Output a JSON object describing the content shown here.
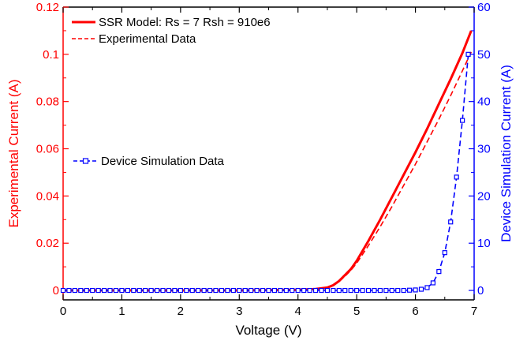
{
  "chart_data": {
    "type": "line",
    "xlabel": "Voltage (V)",
    "ylabel_left": "Experimental Current (A)",
    "ylabel_right": "Device Simulation Current (A)",
    "xlim": [
      0,
      7
    ],
    "ylim_left": [
      -0.004,
      0.12
    ],
    "ylim_right": [
      -2,
      60
    ],
    "x_ticks": [
      "0",
      "1",
      "2",
      "3",
      "4",
      "5",
      "6",
      "7"
    ],
    "y_ticks_left": [
      "0",
      "0.02",
      "0.04",
      "0.06",
      "0.08",
      "0.1",
      "0.12"
    ],
    "y_ticks_right": [
      "0",
      "10",
      "20",
      "30",
      "40",
      "50",
      "60"
    ],
    "grid": false,
    "colors": {
      "left_axis": "#ff0000",
      "right_axis": "#0000ff",
      "frame": "#000000"
    },
    "legend_top": [
      {
        "label": "SSR Model: Rs = 7 Rsh = 910e6",
        "style": "solid",
        "color": "#ff0000"
      },
      {
        "label": "Experimental Data",
        "style": "dashed",
        "color": "#ff0000"
      }
    ],
    "legend_left": [
      {
        "label": "Device Simulation Data",
        "style": "dashed-square",
        "color": "#0000ff"
      }
    ],
    "series": [
      {
        "name": "SSR Model: Rs = 7 Rsh = 910e6",
        "axis": "left",
        "style": "solid",
        "color": "#ff0000",
        "x": [
          0,
          1,
          2,
          3,
          4,
          4.3,
          4.5,
          4.6,
          4.7,
          4.8,
          4.9,
          5.0,
          5.2,
          5.4,
          5.6,
          5.8,
          6.0,
          6.2,
          6.4,
          6.6,
          6.8,
          6.95
        ],
        "y": [
          0,
          0,
          0,
          0,
          0.0002,
          0.0006,
          0.0012,
          0.0022,
          0.004,
          0.0065,
          0.009,
          0.0125,
          0.021,
          0.03,
          0.0395,
          0.049,
          0.0585,
          0.0685,
          0.079,
          0.0895,
          0.1005,
          0.11
        ]
      },
      {
        "name": "Experimental Data",
        "axis": "left",
        "style": "dashed",
        "color": "#ff0000",
        "x": [
          0,
          1,
          2,
          3,
          4,
          4.3,
          4.5,
          4.6,
          4.7,
          4.8,
          4.9,
          5.0,
          5.2,
          5.4,
          5.6,
          5.8,
          6.0,
          6.2,
          6.4,
          6.6,
          6.8,
          6.95
        ],
        "y": [
          0,
          0,
          0,
          0,
          0.0002,
          0.0006,
          0.0012,
          0.0022,
          0.0038,
          0.006,
          0.0085,
          0.0115,
          0.019,
          0.027,
          0.0355,
          0.0445,
          0.0535,
          0.063,
          0.0725,
          0.0825,
          0.093,
          0.101
        ]
      },
      {
        "name": "Device Simulation Data",
        "axis": "right",
        "style": "dashed",
        "marker": "square",
        "color": "#0000ff",
        "x": [
          0,
          0.1,
          0.2,
          0.3,
          0.4,
          0.5,
          0.6,
          0.7,
          0.8,
          0.9,
          1.0,
          1.1,
          1.2,
          1.3,
          1.4,
          1.5,
          1.6,
          1.7,
          1.8,
          1.9,
          2.0,
          2.1,
          2.2,
          2.3,
          2.4,
          2.5,
          2.6,
          2.7,
          2.8,
          2.9,
          3.0,
          3.1,
          3.2,
          3.3,
          3.4,
          3.5,
          3.6,
          3.7,
          3.8,
          3.9,
          4.0,
          4.1,
          4.2,
          4.3,
          4.4,
          4.5,
          4.6,
          4.7,
          4.8,
          4.9,
          5.0,
          5.1,
          5.2,
          5.3,
          5.4,
          5.5,
          5.6,
          5.7,
          5.8,
          5.9,
          6.0,
          6.1,
          6.2,
          6.3,
          6.4,
          6.5,
          6.6,
          6.7,
          6.8,
          6.9
        ],
        "y": [
          0,
          0,
          0,
          0,
          0,
          0,
          0,
          0,
          0,
          0,
          0,
          0,
          0,
          0,
          0,
          0,
          0,
          0,
          0,
          0,
          0,
          0,
          0,
          0,
          0,
          0,
          0,
          0,
          0,
          0,
          0,
          0,
          0,
          0,
          0,
          0,
          0,
          0,
          0,
          0,
          0,
          0,
          0,
          0,
          0,
          0,
          0,
          0,
          0,
          0,
          0,
          0,
          0,
          0,
          0,
          0,
          0,
          0,
          0,
          0.05,
          0.1,
          0.25,
          0.6,
          1.6,
          4.0,
          8.0,
          14.5,
          24.0,
          36.0,
          50.0
        ]
      }
    ]
  }
}
